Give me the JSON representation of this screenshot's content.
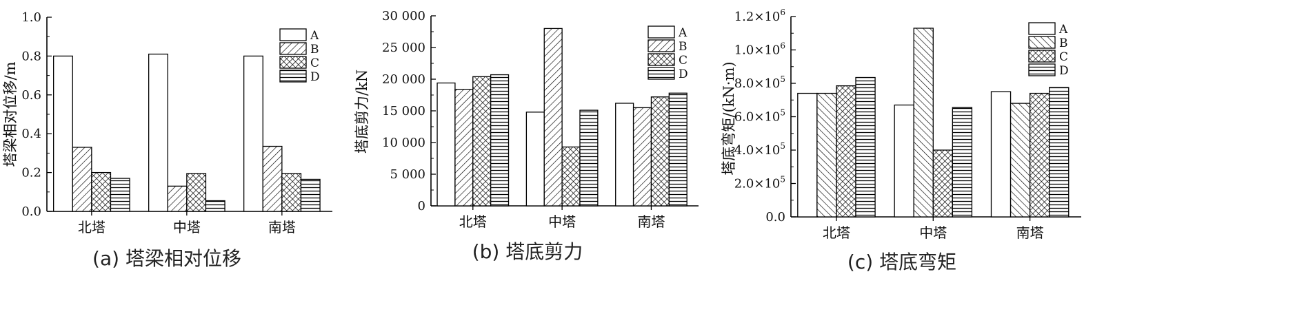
{
  "colors": {
    "axis": "#000000",
    "bar_fill": "#ffffff",
    "pattern": "#000000"
  },
  "chart_data": [
    {
      "type": "bar",
      "caption": "(a) 塔梁相对位移",
      "ylabel": "塔梁相对位移/m",
      "categories": [
        "北塔",
        "中塔",
        "南塔"
      ],
      "ylim": [
        0,
        1.0
      ],
      "yticks": [
        0.0,
        0.2,
        0.4,
        0.6,
        0.8,
        1.0
      ],
      "ytick_labels": [
        "0.0",
        "0.2",
        "0.4",
        "0.6",
        "0.8",
        "1.0"
      ],
      "legend": "top-right",
      "series": [
        {
          "name": "A",
          "pattern": "blank",
          "values": [
            0.8,
            0.81,
            0.8
          ]
        },
        {
          "name": "B",
          "pattern": "diag",
          "values": [
            0.33,
            0.13,
            0.335
          ]
        },
        {
          "name": "C",
          "pattern": "cross",
          "values": [
            0.2,
            0.195,
            0.195
          ]
        },
        {
          "name": "D",
          "pattern": "horiz",
          "values": [
            0.17,
            0.055,
            0.165
          ]
        }
      ]
    },
    {
      "type": "bar",
      "caption": "(b) 塔底剪力",
      "ylabel": "塔底剪力/kN",
      "categories": [
        "北塔",
        "中塔",
        "南塔"
      ],
      "ylim": [
        0,
        30000
      ],
      "yticks": [
        0,
        5000,
        10000,
        15000,
        20000,
        25000,
        30000
      ],
      "ytick_labels": [
        "0",
        "5 000",
        "10 000",
        "15 000",
        "20 000",
        "25 000",
        "30 000"
      ],
      "legend": "top-right",
      "series": [
        {
          "name": "A",
          "pattern": "blank",
          "values": [
            19400,
            14800,
            16200
          ]
        },
        {
          "name": "B",
          "pattern": "diag",
          "values": [
            18400,
            28000,
            15500
          ]
        },
        {
          "name": "C",
          "pattern": "cross",
          "values": [
            20400,
            9300,
            17200
          ]
        },
        {
          "name": "D",
          "pattern": "horiz",
          "values": [
            20700,
            15100,
            17800
          ]
        }
      ]
    },
    {
      "type": "bar",
      "caption": "(c) 塔底弯矩",
      "ylabel": "塔底弯矩/(kN·m)",
      "categories": [
        "北塔",
        "中塔",
        "南塔"
      ],
      "ylim": [
        0,
        1200000
      ],
      "yticks": [
        0,
        200000,
        400000,
        600000,
        800000,
        1000000,
        1200000
      ],
      "ytick_labels": [
        {
          "base": "0.0",
          "exp": ""
        },
        {
          "base": "2.0×10",
          "exp": "5"
        },
        {
          "base": "4.0×10",
          "exp": "5"
        },
        {
          "base": "6.0×10",
          "exp": "5"
        },
        {
          "base": "8.0×10",
          "exp": "5"
        },
        {
          "base": "1.0×10",
          "exp": "6"
        },
        {
          "base": "1.2×10",
          "exp": "6"
        }
      ],
      "legend": "top-right",
      "series": [
        {
          "name": "A",
          "pattern": "blank",
          "values": [
            740000,
            670000,
            750000
          ]
        },
        {
          "name": "B",
          "pattern": "diag2",
          "values": [
            740000,
            1130000,
            680000
          ]
        },
        {
          "name": "C",
          "pattern": "cross",
          "values": [
            785000,
            400000,
            740000
          ]
        },
        {
          "name": "D",
          "pattern": "horiz",
          "values": [
            835000,
            655000,
            775000
          ]
        }
      ]
    }
  ]
}
